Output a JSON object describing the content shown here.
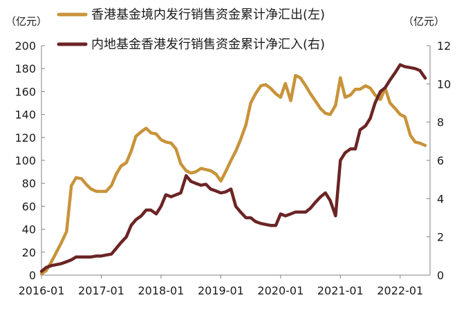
{
  "chart_data": {
    "type": "line",
    "left_axis": {
      "unit_label": "（亿元）",
      "ticks": [
        0,
        20,
        40,
        60,
        80,
        100,
        120,
        140,
        160,
        180,
        200
      ],
      "range": [
        0,
        200
      ]
    },
    "right_axis": {
      "unit_label": "（亿元）",
      "ticks": [
        0,
        2,
        4,
        6,
        8,
        10,
        12
      ],
      "range": [
        0,
        12
      ]
    },
    "x_axis": {
      "ticks": [
        "2016-01",
        "2017-01",
        "2018-01",
        "2019-01",
        "2020-01",
        "2021-01",
        "2022-01"
      ],
      "range": [
        2016.0,
        2022.5
      ]
    },
    "legend_placement": "top",
    "grid": false,
    "series": [
      {
        "name": "香港基金境内发行销售资金累计净汇出(左)",
        "axis": "left",
        "color": "#C8933A",
        "points": [
          [
            2016.0,
            1
          ],
          [
            2016.08,
            4
          ],
          [
            2016.17,
            12
          ],
          [
            2016.25,
            20
          ],
          [
            2016.33,
            28
          ],
          [
            2016.42,
            38
          ],
          [
            2016.5,
            78
          ],
          [
            2016.58,
            85
          ],
          [
            2016.67,
            84
          ],
          [
            2016.75,
            79
          ],
          [
            2016.83,
            75
          ],
          [
            2016.92,
            73
          ],
          [
            2017.0,
            73
          ],
          [
            2017.08,
            73
          ],
          [
            2017.17,
            78
          ],
          [
            2017.25,
            88
          ],
          [
            2017.33,
            95
          ],
          [
            2017.42,
            98
          ],
          [
            2017.5,
            108
          ],
          [
            2017.58,
            121
          ],
          [
            2017.67,
            125
          ],
          [
            2017.75,
            128
          ],
          [
            2017.83,
            124
          ],
          [
            2017.92,
            123
          ],
          [
            2018.0,
            118
          ],
          [
            2018.08,
            116
          ],
          [
            2018.17,
            115
          ],
          [
            2018.25,
            110
          ],
          [
            2018.33,
            97
          ],
          [
            2018.42,
            91
          ],
          [
            2018.5,
            89
          ],
          [
            2018.58,
            90
          ],
          [
            2018.67,
            93
          ],
          [
            2018.75,
            92
          ],
          [
            2018.83,
            91
          ],
          [
            2018.92,
            88
          ],
          [
            2019.0,
            82
          ],
          [
            2019.08,
            90
          ],
          [
            2019.17,
            100
          ],
          [
            2019.25,
            108
          ],
          [
            2019.33,
            118
          ],
          [
            2019.42,
            131
          ],
          [
            2019.5,
            150
          ],
          [
            2019.58,
            158
          ],
          [
            2019.67,
            165
          ],
          [
            2019.75,
            166
          ],
          [
            2019.83,
            163
          ],
          [
            2019.92,
            158
          ],
          [
            2020.0,
            155
          ],
          [
            2020.08,
            167
          ],
          [
            2020.17,
            152
          ],
          [
            2020.25,
            174
          ],
          [
            2020.33,
            172
          ],
          [
            2020.42,
            165
          ],
          [
            2020.5,
            158
          ],
          [
            2020.58,
            152
          ],
          [
            2020.67,
            145
          ],
          [
            2020.75,
            141
          ],
          [
            2020.83,
            140
          ],
          [
            2020.92,
            148
          ],
          [
            2021.0,
            172
          ],
          [
            2021.08,
            155
          ],
          [
            2021.17,
            157
          ],
          [
            2021.25,
            162
          ],
          [
            2021.33,
            162
          ],
          [
            2021.42,
            165
          ],
          [
            2021.5,
            163
          ],
          [
            2021.58,
            157
          ],
          [
            2021.67,
            153
          ],
          [
            2021.75,
            163
          ],
          [
            2021.83,
            150
          ],
          [
            2021.92,
            145
          ],
          [
            2022.0,
            140
          ],
          [
            2022.08,
            138
          ],
          [
            2022.17,
            122
          ],
          [
            2022.25,
            116
          ],
          [
            2022.33,
            115
          ],
          [
            2022.42,
            113
          ]
        ]
      },
      {
        "name": "内地基金香港发行销售资金累计净汇入(右)",
        "axis": "right",
        "color": "#6B2424",
        "points": [
          [
            2016.0,
            0.2
          ],
          [
            2016.08,
            0.4
          ],
          [
            2016.17,
            0.5
          ],
          [
            2016.25,
            0.55
          ],
          [
            2016.33,
            0.6
          ],
          [
            2016.42,
            0.7
          ],
          [
            2016.5,
            0.8
          ],
          [
            2016.58,
            0.95
          ],
          [
            2016.67,
            0.95
          ],
          [
            2016.75,
            0.95
          ],
          [
            2016.83,
            0.95
          ],
          [
            2016.92,
            1.0
          ],
          [
            2017.0,
            1.0
          ],
          [
            2017.08,
            1.05
          ],
          [
            2017.17,
            1.1
          ],
          [
            2017.25,
            1.4
          ],
          [
            2017.33,
            1.7
          ],
          [
            2017.42,
            2.0
          ],
          [
            2017.5,
            2.6
          ],
          [
            2017.58,
            2.9
          ],
          [
            2017.67,
            3.1
          ],
          [
            2017.75,
            3.4
          ],
          [
            2017.83,
            3.4
          ],
          [
            2017.92,
            3.2
          ],
          [
            2018.0,
            3.6
          ],
          [
            2018.08,
            4.2
          ],
          [
            2018.17,
            4.1
          ],
          [
            2018.25,
            4.2
          ],
          [
            2018.33,
            4.3
          ],
          [
            2018.42,
            5.2
          ],
          [
            2018.5,
            4.9
          ],
          [
            2018.58,
            4.8
          ],
          [
            2018.67,
            4.7
          ],
          [
            2018.75,
            4.75
          ],
          [
            2018.83,
            4.5
          ],
          [
            2018.92,
            4.4
          ],
          [
            2019.0,
            4.3
          ],
          [
            2019.08,
            4.35
          ],
          [
            2019.17,
            4.5
          ],
          [
            2019.25,
            3.6
          ],
          [
            2019.33,
            3.3
          ],
          [
            2019.42,
            3.0
          ],
          [
            2019.5,
            3.0
          ],
          [
            2019.58,
            2.8
          ],
          [
            2019.67,
            2.7
          ],
          [
            2019.75,
            2.65
          ],
          [
            2019.83,
            2.6
          ],
          [
            2019.92,
            2.6
          ],
          [
            2020.0,
            3.2
          ],
          [
            2020.08,
            3.1
          ],
          [
            2020.17,
            3.2
          ],
          [
            2020.25,
            3.3
          ],
          [
            2020.33,
            3.3
          ],
          [
            2020.42,
            3.3
          ],
          [
            2020.5,
            3.5
          ],
          [
            2020.58,
            3.8
          ],
          [
            2020.67,
            4.1
          ],
          [
            2020.75,
            4.3
          ],
          [
            2020.83,
            3.9
          ],
          [
            2020.92,
            3.1
          ],
          [
            2021.0,
            6.0
          ],
          [
            2021.08,
            6.4
          ],
          [
            2021.17,
            6.6
          ],
          [
            2021.25,
            6.6
          ],
          [
            2021.33,
            7.6
          ],
          [
            2021.42,
            7.8
          ],
          [
            2021.5,
            8.2
          ],
          [
            2021.58,
            9.0
          ],
          [
            2021.67,
            9.6
          ],
          [
            2021.75,
            9.8
          ],
          [
            2021.83,
            10.2
          ],
          [
            2021.92,
            10.6
          ],
          [
            2022.0,
            11.0
          ],
          [
            2022.08,
            10.9
          ],
          [
            2022.17,
            10.85
          ],
          [
            2022.25,
            10.8
          ],
          [
            2022.33,
            10.7
          ],
          [
            2022.42,
            10.3
          ]
        ]
      }
    ]
  }
}
